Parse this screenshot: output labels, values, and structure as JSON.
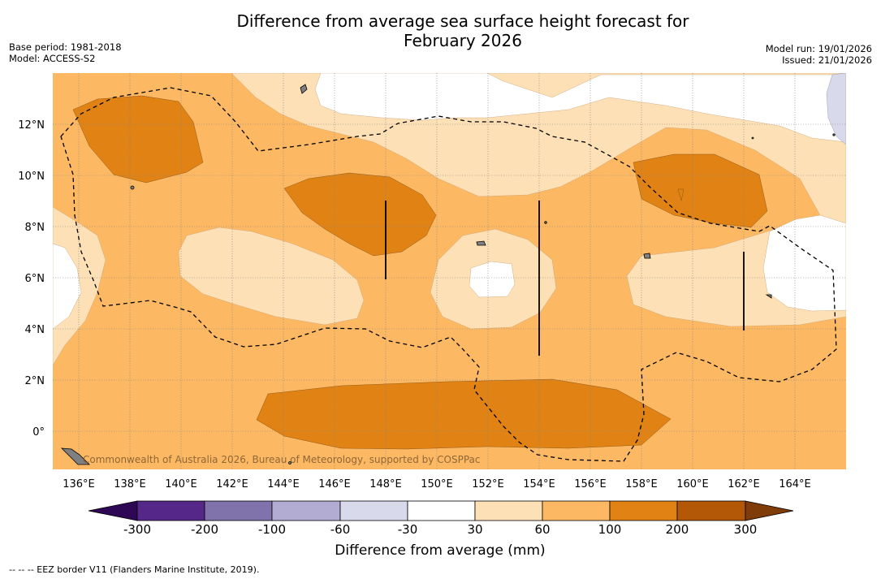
{
  "title_line1": "Difference from average sea surface height forecast for",
  "title_line2": "February 2026",
  "meta_left": {
    "base_period": "Base period: 1981-2018",
    "model": "Model: ACCESS-S2"
  },
  "meta_right": {
    "model_run": "Model run: 19/01/2026",
    "issued": "Issued: 21/01/2026"
  },
  "map": {
    "lon_labels": [
      "136°E",
      "138°E",
      "140°E",
      "142°E",
      "144°E",
      "146°E",
      "148°E",
      "150°E",
      "152°E",
      "154°E",
      "156°E",
      "158°E",
      "160°E",
      "162°E",
      "164°E"
    ],
    "lat_labels": [
      "12°N",
      "10°N",
      "8°N",
      "6°N",
      "4°N",
      "2°N",
      "0°"
    ],
    "watermark": "Commonwealth of Australia 2026, Bureau of Meteorology, supported by COSPPac"
  },
  "colorbar": {
    "labels": [
      "-300",
      "-200",
      "-100",
      "-60",
      "-30",
      "30",
      "60",
      "100",
      "200",
      "300"
    ],
    "title": "Difference from average (mm)"
  },
  "colors": {
    "under": "#2e0854",
    "m300": "#542788",
    "m200": "#8073ac",
    "m100": "#b2abd2",
    "m60": "#d8daeb",
    "neutral": "#ffffff",
    "p30": "#fee0b6",
    "p60": "#fdb863",
    "p100": "#e08214",
    "p200": "#b35806",
    "over": "#7f3b08",
    "land": "#808080"
  },
  "footnote": "-- -- -- EEZ border V11 (Flanders Marine Institute, 2019)."
}
